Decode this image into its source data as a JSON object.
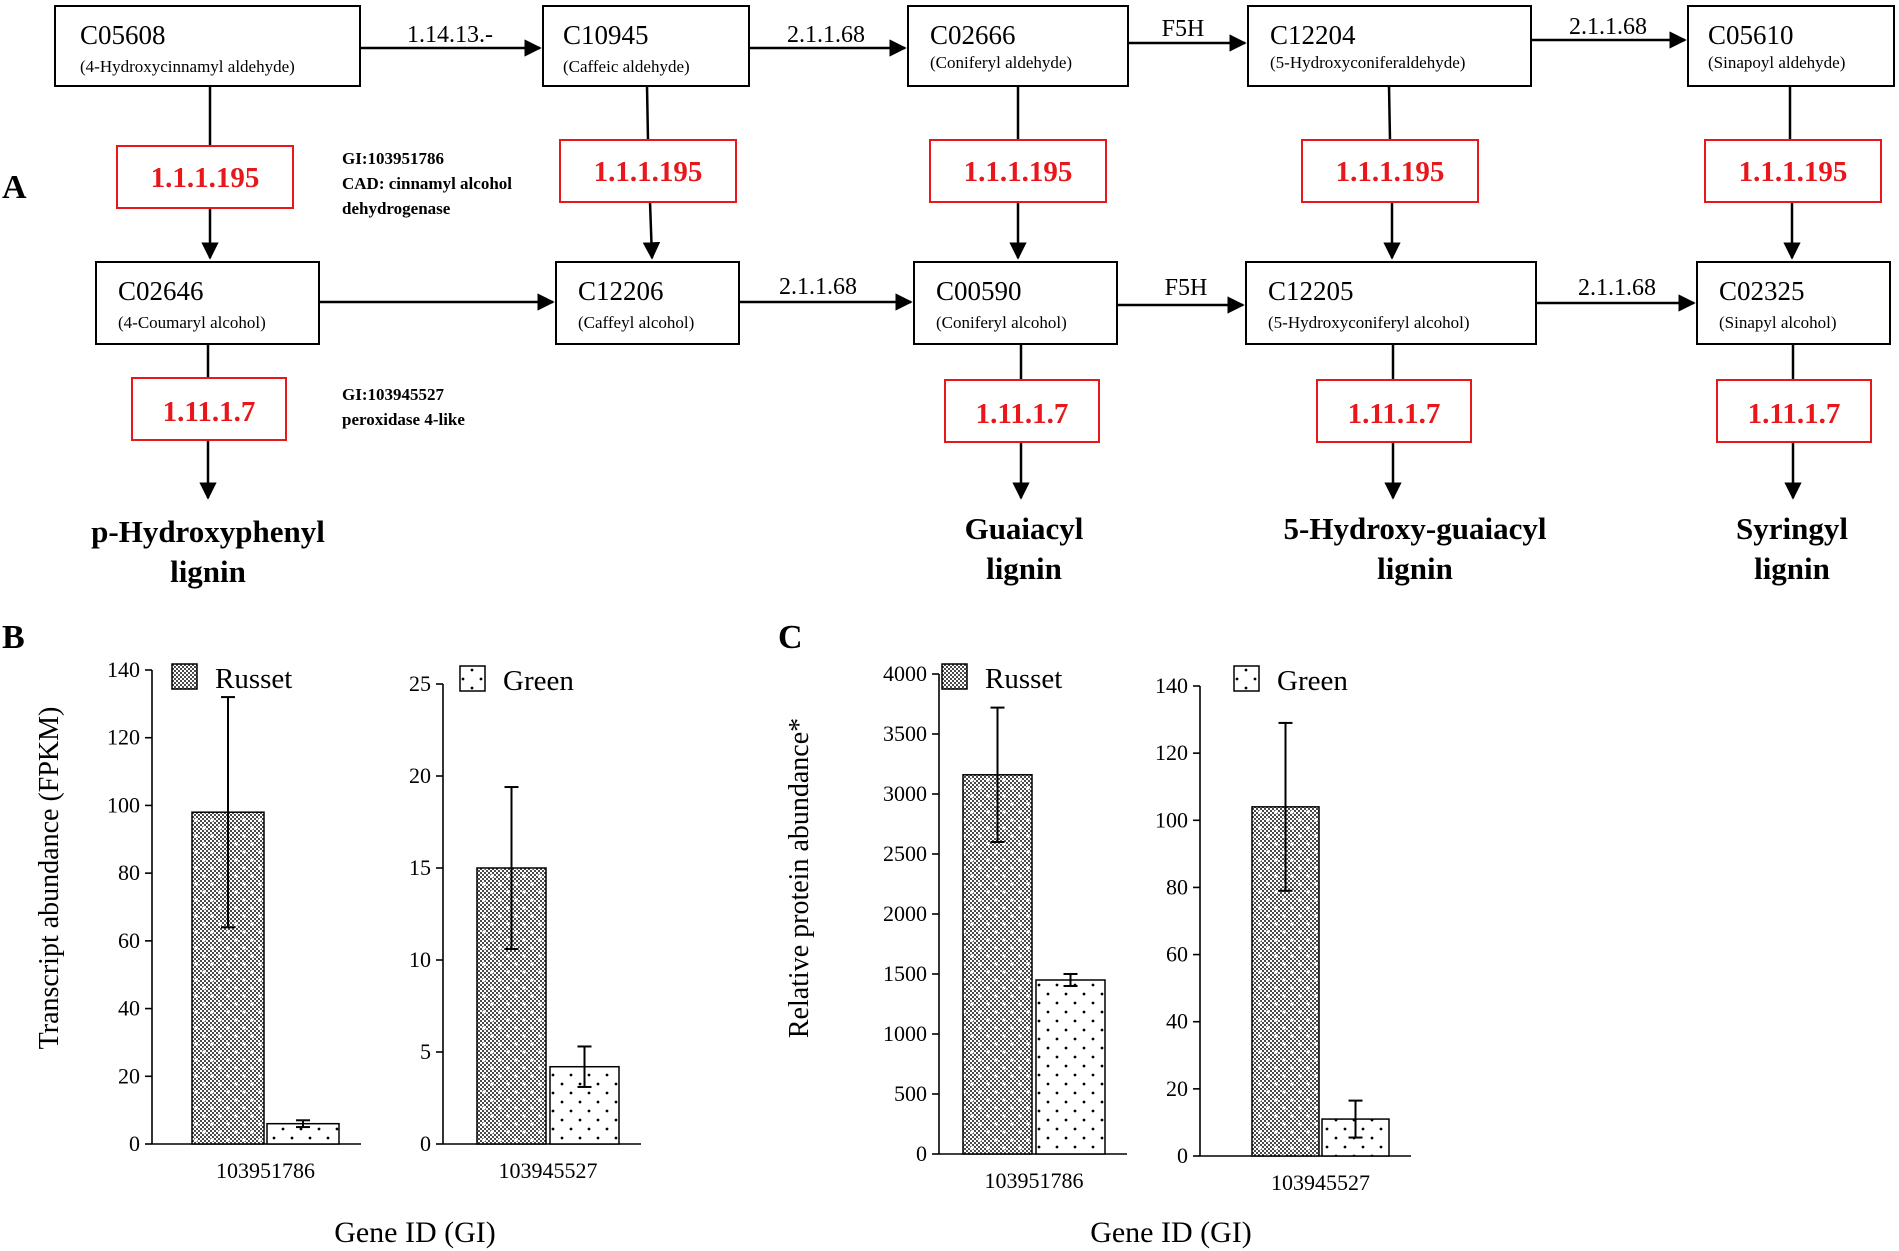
{
  "panel_labels": {
    "a": "A",
    "b": "B",
    "c": "C"
  },
  "colors": {
    "enzyme_red": "#e8171b",
    "ink": "#000000"
  },
  "pathway": {
    "top_nodes": [
      {
        "id": "C05608",
        "name": "(4-Hydroxycinnamyl aldehyde)"
      },
      {
        "id": "C10945",
        "name": "(Caffeic aldehyde)"
      },
      {
        "id": "C02666",
        "name": "(Coniferyl aldehyde)"
      },
      {
        "id": "C12204",
        "name": "(5-Hydroxyconiferaldehyde)"
      },
      {
        "id": "C05610",
        "name": "(Sinapoyl aldehyde)"
      }
    ],
    "bottom_nodes": [
      {
        "id": "C02646",
        "name": "(4-Coumaryl alcohol)"
      },
      {
        "id": "C12206",
        "name": "(Caffeyl alcohol)"
      },
      {
        "id": "C00590",
        "name": "(Coniferyl alcohol)"
      },
      {
        "id": "C12205",
        "name": "(5-Hydroxyconiferyl alcohol)"
      },
      {
        "id": "C02325",
        "name": "(Sinapyl alcohol)"
      }
    ],
    "top_edge_labels": [
      "1.14.13.-",
      "2.1.1.68",
      "F5H",
      "2.1.1.68"
    ],
    "bottom_edge_labels": [
      "2.1.1.68",
      "F5H",
      "2.1.1.68"
    ],
    "reduction_enzyme": "1.1.1.195",
    "peroxidase_enzyme": "1.11.1.7",
    "cad_note": [
      "GI:103951786",
      "CAD: cinnamyl alcohol",
      "dehydrogenase"
    ],
    "perox_note": [
      "GI:103945527",
      "peroxidase 4-like"
    ],
    "products": [
      [
        "p-Hydroxyphenyl",
        "lignin"
      ],
      [
        "Guaiacyl",
        "lignin"
      ],
      [
        "5-Hydroxy-guaiacyl",
        "lignin"
      ],
      [
        "Syringyl",
        "lignin"
      ]
    ]
  },
  "chart_data": [
    {
      "type": "bar",
      "panel": "B",
      "ylabel": "Transcript abundance (FPKM)",
      "categories": [
        "103951786"
      ],
      "ylim": [
        0,
        140
      ],
      "yticks": [
        0,
        20,
        40,
        60,
        80,
        100,
        120,
        140
      ],
      "series": [
        {
          "name": "Russet",
          "values": [
            98
          ],
          "error": [
            34
          ]
        },
        {
          "name": "Green",
          "values": [
            6
          ],
          "error": [
            1
          ]
        }
      ],
      "legend": "Russet"
    },
    {
      "type": "bar",
      "panel": "B",
      "categories": [
        "103945527"
      ],
      "ylim": [
        0,
        25
      ],
      "yticks": [
        0,
        5,
        10,
        15,
        20,
        25
      ],
      "series": [
        {
          "name": "Russet",
          "values": [
            15
          ],
          "error": [
            4.4
          ]
        },
        {
          "name": "Green",
          "values": [
            4.2
          ],
          "error": [
            1.1
          ]
        }
      ],
      "legend": "Green"
    },
    {
      "type": "bar",
      "panel": "C",
      "ylabel": "Relative protein abundance*",
      "categories": [
        "103951786"
      ],
      "ylim": [
        0,
        4000
      ],
      "yticks": [
        0,
        500,
        1000,
        1500,
        2000,
        2500,
        3000,
        3500,
        4000
      ],
      "series": [
        {
          "name": "Russet",
          "values": [
            3160
          ],
          "error": [
            560
          ]
        },
        {
          "name": "Green",
          "values": [
            1450
          ],
          "error": [
            50
          ]
        }
      ],
      "legend": "Russet"
    },
    {
      "type": "bar",
      "panel": "C",
      "categories": [
        "103945527"
      ],
      "ylim": [
        0,
        140
      ],
      "yticks": [
        0,
        20,
        40,
        60,
        80,
        100,
        120,
        140
      ],
      "series": [
        {
          "name": "Russet",
          "values": [
            104
          ],
          "error": [
            25
          ]
        },
        {
          "name": "Green",
          "values": [
            11
          ],
          "error": [
            5.5
          ]
        }
      ],
      "legend": "Green"
    }
  ],
  "xlabel_b": "Gene ID (GI)",
  "xlabel_c": "Gene ID (GI)"
}
